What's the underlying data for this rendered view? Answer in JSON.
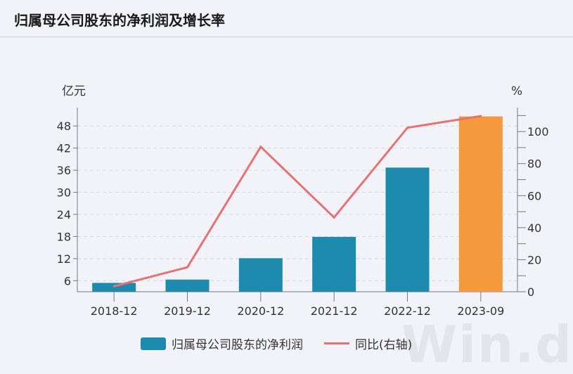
{
  "header": {
    "title": "归属母公司股东的净利润及增长率"
  },
  "watermark": "Win.d",
  "chart_data": {
    "type": "bar+line",
    "categories": [
      "2018-12",
      "2019-12",
      "2020-12",
      "2021-12",
      "2022-12",
      "2023-09"
    ],
    "left_axis": {
      "unit": "亿元",
      "range": [
        3,
        53
      ],
      "ticks": [
        6,
        12,
        18,
        24,
        30,
        36,
        42,
        48
      ]
    },
    "right_axis": {
      "unit": "%",
      "range": [
        0,
        115
      ],
      "ticks": [
        0,
        20,
        40,
        60,
        80,
        100
      ]
    },
    "grid": true,
    "legend_position": "bottom",
    "series": [
      {
        "name": "归属母公司股东的净利润",
        "type": "bar",
        "axis": "left",
        "values": [
          5.4,
          6.3,
          12.1,
          17.9,
          36.7,
          50.6
        ],
        "color": "#1e8aad",
        "highlight_color": "#f59a3c"
      },
      {
        "name": "同比(右轴)",
        "type": "line",
        "axis": "right",
        "values": [
          3.4,
          15.3,
          90.5,
          46.4,
          102.4,
          109.7
        ],
        "color": "#e57373"
      }
    ]
  }
}
